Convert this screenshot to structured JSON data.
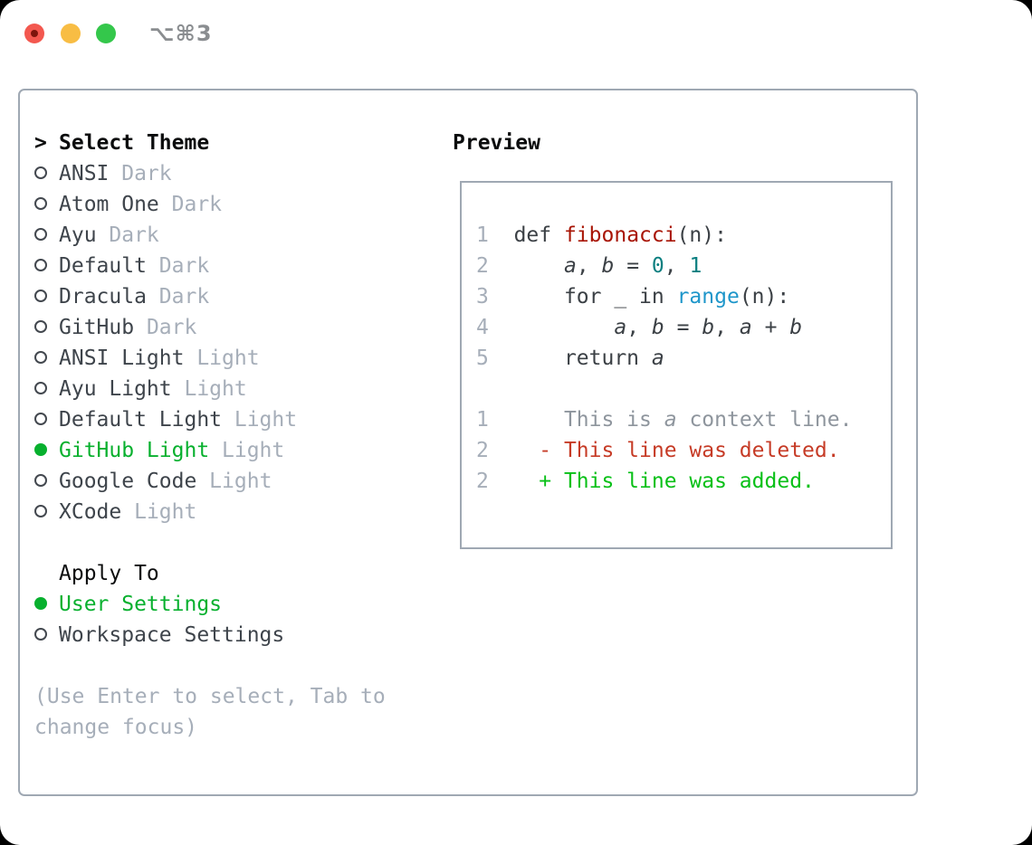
{
  "titlebar": {
    "title": "⌥⌘3",
    "buttons": [
      "close",
      "minimize",
      "zoom"
    ]
  },
  "theme_picker": {
    "prompt_marker": ">",
    "header": "Select Theme",
    "items": [
      {
        "name": "ANSI",
        "variant": "Dark",
        "selected": false
      },
      {
        "name": "Atom One",
        "variant": "Dark",
        "selected": false
      },
      {
        "name": "Ayu",
        "variant": "Dark",
        "selected": false
      },
      {
        "name": "Default",
        "variant": "Dark",
        "selected": false
      },
      {
        "name": "Dracula",
        "variant": "Dark",
        "selected": false
      },
      {
        "name": "GitHub",
        "variant": "Dark",
        "selected": false
      },
      {
        "name": "ANSI Light",
        "variant": "Light",
        "selected": false
      },
      {
        "name": "Ayu Light",
        "variant": "Light",
        "selected": false
      },
      {
        "name": "Default Light",
        "variant": "Light",
        "selected": false
      },
      {
        "name": "GitHub Light",
        "variant": "Light",
        "selected": true
      },
      {
        "name": "Google Code",
        "variant": "Light",
        "selected": false
      },
      {
        "name": "XCode",
        "variant": "Light",
        "selected": false
      }
    ],
    "apply_to": {
      "header": "Apply To",
      "options": [
        {
          "label": "User Settings",
          "selected": true
        },
        {
          "label": "Workspace Settings",
          "selected": false
        }
      ]
    },
    "hint_lines": [
      "(Use Enter to select, Tab to",
      "change focus)"
    ]
  },
  "preview": {
    "header": "Preview",
    "code_lines": [
      {
        "num": "1",
        "segments": [
          {
            "text": "def ",
            "color": "default"
          },
          {
            "text": "fibonacci",
            "color": "function"
          },
          {
            "text": "(n):",
            "color": "default"
          }
        ]
      },
      {
        "num": "2",
        "segments": [
          {
            "text": "    ",
            "color": "default"
          },
          {
            "text": "a",
            "color": "default",
            "italic": true
          },
          {
            "text": ", ",
            "color": "default"
          },
          {
            "text": "b",
            "color": "default",
            "italic": true
          },
          {
            "text": " = ",
            "color": "default"
          },
          {
            "text": "0",
            "color": "number"
          },
          {
            "text": ", ",
            "color": "default"
          },
          {
            "text": "1",
            "color": "number"
          }
        ]
      },
      {
        "num": "3",
        "segments": [
          {
            "text": "    for _ in ",
            "color": "default"
          },
          {
            "text": "range",
            "color": "builtin"
          },
          {
            "text": "(n):",
            "color": "default"
          }
        ]
      },
      {
        "num": "4",
        "segments": [
          {
            "text": "        ",
            "color": "default"
          },
          {
            "text": "a",
            "color": "default",
            "italic": true
          },
          {
            "text": ", ",
            "color": "default"
          },
          {
            "text": "b",
            "color": "default",
            "italic": true
          },
          {
            "text": " = ",
            "color": "default"
          },
          {
            "text": "b",
            "color": "default",
            "italic": true
          },
          {
            "text": ", ",
            "color": "default"
          },
          {
            "text": "a",
            "color": "default",
            "italic": true
          },
          {
            "text": " + ",
            "color": "default"
          },
          {
            "text": "b",
            "color": "default",
            "italic": true
          }
        ]
      },
      {
        "num": "5",
        "segments": [
          {
            "text": "    return ",
            "color": "default"
          },
          {
            "text": "a",
            "color": "default",
            "italic": true
          }
        ]
      },
      {
        "num": "",
        "segments": []
      },
      {
        "num": "1",
        "segments": [
          {
            "text": "    This is ",
            "color": "context"
          },
          {
            "text": "a",
            "color": "context",
            "italic": true
          },
          {
            "text": " context line.",
            "color": "context"
          }
        ]
      },
      {
        "num": "2",
        "segments": [
          {
            "text": "  - This line was deleted.",
            "color": "deleted"
          }
        ]
      },
      {
        "num": "2",
        "segments": [
          {
            "text": "  + This line was added.",
            "color": "added"
          }
        ]
      }
    ]
  },
  "syntax_colors": {
    "default": "#3b4045",
    "function": "#a81404",
    "number": "#0b7f80",
    "builtin": "#1e96ca",
    "context": "#8e959d",
    "deleted": "#c63b26",
    "added": "#08c017"
  },
  "ui_colors": {
    "selection_green": "#07b02e",
    "muted_gray": "#a6aeb9",
    "border_gray": "#9fa8b3",
    "traffic_red": "#f3584f",
    "traffic_yellow": "#f8bd44",
    "traffic_green": "#34c74b"
  }
}
